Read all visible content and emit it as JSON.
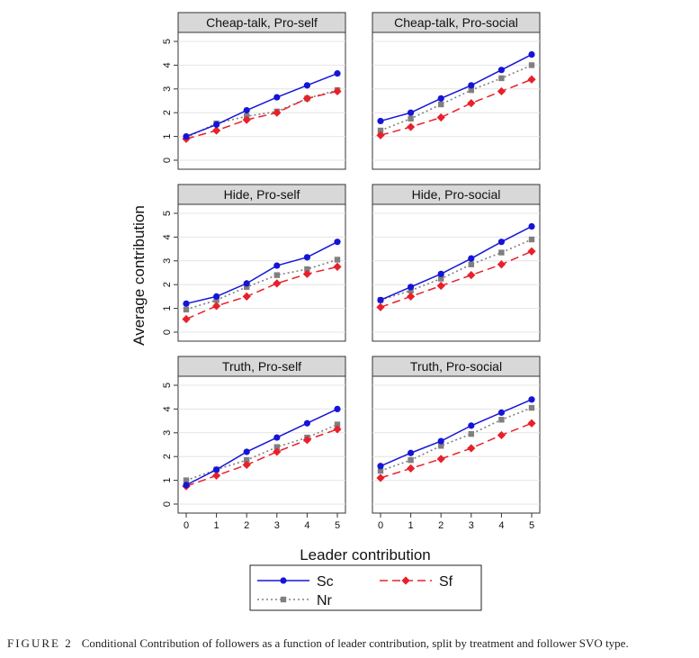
{
  "chart_data": {
    "type": "line",
    "xlabel": "Leader contribution",
    "ylabel": "Average contribution",
    "x_ticks": [
      0,
      1,
      2,
      3,
      4,
      5
    ],
    "y_ticks": [
      0,
      1,
      2,
      3,
      4,
      5
    ],
    "xlim": [
      0,
      5
    ],
    "ylim": [
      0,
      5
    ],
    "grid": true,
    "legend": {
      "placement": "bottom-center",
      "entries": [
        {
          "name": "Sc",
          "color": "#1515d6",
          "marker": "circle",
          "dash": "solid"
        },
        {
          "name": "Sf",
          "color": "#e8202a",
          "marker": "diamond",
          "dash": "dashed"
        },
        {
          "name": "Nr",
          "color": "#808080",
          "marker": "square",
          "dash": "dotted"
        }
      ]
    },
    "panels": [
      {
        "title": "Cheap-talk, Pro-self",
        "x": [
          0,
          1,
          2,
          3,
          4,
          5
        ],
        "series": [
          {
            "name": "Sc",
            "values": [
              1.0,
              1.5,
              2.1,
              2.65,
              3.15,
              3.65
            ]
          },
          {
            "name": "Nr",
            "values": [
              0.95,
              1.55,
              1.85,
              2.05,
              2.6,
              2.95
            ]
          },
          {
            "name": "Sf",
            "values": [
              0.9,
              1.25,
              1.7,
              2.0,
              2.6,
              2.9
            ]
          }
        ]
      },
      {
        "title": "Cheap-talk, Pro-social",
        "x": [
          0,
          1,
          2,
          3,
          4,
          5
        ],
        "series": [
          {
            "name": "Sc",
            "values": [
              1.65,
              2.0,
              2.6,
              3.15,
              3.8,
              4.45
            ]
          },
          {
            "name": "Nr",
            "values": [
              1.25,
              1.75,
              2.35,
              2.95,
              3.45,
              4.0
            ]
          },
          {
            "name": "Sf",
            "values": [
              1.05,
              1.4,
              1.8,
              2.4,
              2.9,
              3.4
            ]
          }
        ]
      },
      {
        "title": "Hide, Pro-self",
        "x": [
          0,
          1,
          2,
          3,
          4,
          5
        ],
        "series": [
          {
            "name": "Sc",
            "values": [
              1.2,
              1.5,
              2.05,
              2.8,
              3.15,
              3.8
            ]
          },
          {
            "name": "Nr",
            "values": [
              0.95,
              1.35,
              1.9,
              2.4,
              2.65,
              3.05
            ]
          },
          {
            "name": "Sf",
            "values": [
              0.55,
              1.1,
              1.5,
              2.05,
              2.45,
              2.75
            ]
          }
        ]
      },
      {
        "title": "Hide, Pro-social",
        "x": [
          0,
          1,
          2,
          3,
          4,
          5
        ],
        "series": [
          {
            "name": "Sc",
            "values": [
              1.35,
              1.9,
              2.45,
              3.1,
              3.8,
              4.45
            ]
          },
          {
            "name": "Nr",
            "values": [
              1.35,
              1.75,
              2.25,
              2.85,
              3.35,
              3.9
            ]
          },
          {
            "name": "Sf",
            "values": [
              1.05,
              1.5,
              1.95,
              2.4,
              2.85,
              3.4
            ]
          }
        ]
      },
      {
        "title": "Truth, Pro-self",
        "x": [
          0,
          1,
          2,
          3,
          4,
          5
        ],
        "series": [
          {
            "name": "Sc",
            "values": [
              0.8,
              1.45,
              2.2,
              2.8,
              3.4,
              4.0
            ]
          },
          {
            "name": "Nr",
            "values": [
              1.0,
              1.45,
              1.85,
              2.4,
              2.8,
              3.35
            ]
          },
          {
            "name": "Sf",
            "values": [
              0.75,
              1.2,
              1.65,
              2.2,
              2.7,
              3.15
            ]
          }
        ]
      },
      {
        "title": "Truth, Pro-social",
        "x": [
          0,
          1,
          2,
          3,
          4,
          5
        ],
        "series": [
          {
            "name": "Sc",
            "values": [
              1.6,
              2.15,
              2.65,
              3.3,
              3.85,
              4.4
            ]
          },
          {
            "name": "Nr",
            "values": [
              1.4,
              1.85,
              2.45,
              2.95,
              3.55,
              4.05
            ]
          },
          {
            "name": "Sf",
            "values": [
              1.1,
              1.5,
              1.9,
              2.35,
              2.9,
              3.4
            ]
          }
        ]
      }
    ]
  },
  "caption": {
    "label": "FIGURE 2",
    "text": "Conditional Contribution of followers as a function of leader contribution, split by treatment and follower SVO type."
  }
}
